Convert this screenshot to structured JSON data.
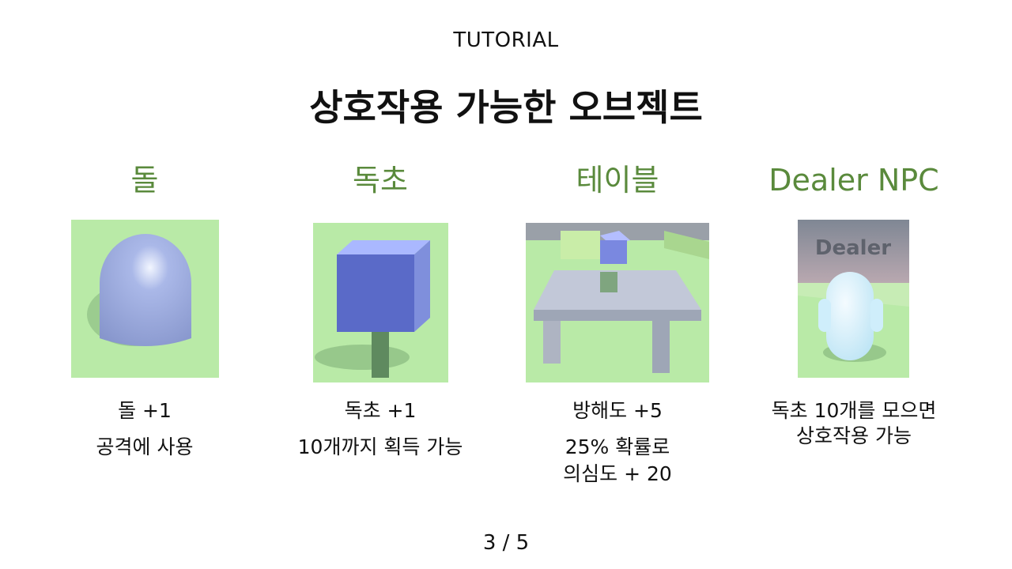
{
  "header": {
    "kicker": "TUTORIAL",
    "title": "상호작용 가능한 오브젝트"
  },
  "items": [
    {
      "name": "돌",
      "line1": "돌 +1",
      "line2": "공격에 사용"
    },
    {
      "name": "독초",
      "line1": "독초 +1",
      "line2": "10개까지 획득 가능"
    },
    {
      "name": "테이블",
      "line1": "방해도 +5",
      "line2": "25% 확률로",
      "line3": "의심도 + 20"
    },
    {
      "name": "Dealer NPC",
      "line1": "독초 10개를 모으면",
      "line2": "상호작용 가능",
      "sign": "Dealer"
    }
  ],
  "footer": {
    "page": "3 / 5"
  },
  "colors": {
    "accent": "#5a8a3c",
    "ground": "#b7e9a6",
    "object": "#8fa3dd"
  }
}
